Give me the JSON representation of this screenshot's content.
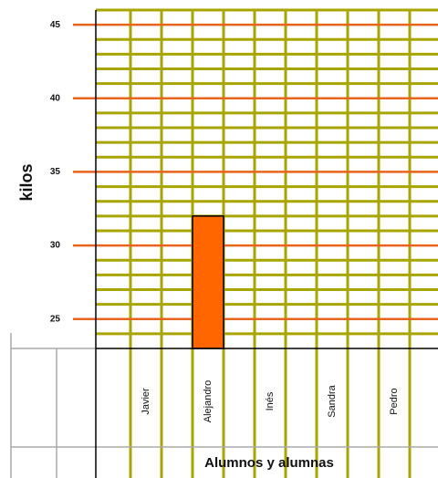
{
  "chart_data": {
    "type": "bar",
    "y_label": "kilos",
    "x_label": "Alumnos y alumnas",
    "categories": [
      "Javier",
      "Alejandro",
      "Inés",
      "Sandra",
      "Pedro"
    ],
    "values": [
      null,
      32,
      null,
      null,
      null
    ],
    "color": "#ff6600",
    "ylim": [
      23,
      46
    ],
    "yticks": [
      25,
      30,
      35,
      40,
      45
    ],
    "minor_yticks": [
      24,
      26,
      27,
      28,
      29,
      31,
      32,
      33,
      34,
      36,
      37,
      38,
      39,
      41,
      42,
      43,
      44,
      46
    ],
    "grid": true,
    "major_grid_color": "#e8641c",
    "minor_grid_color": "#a8a400"
  }
}
